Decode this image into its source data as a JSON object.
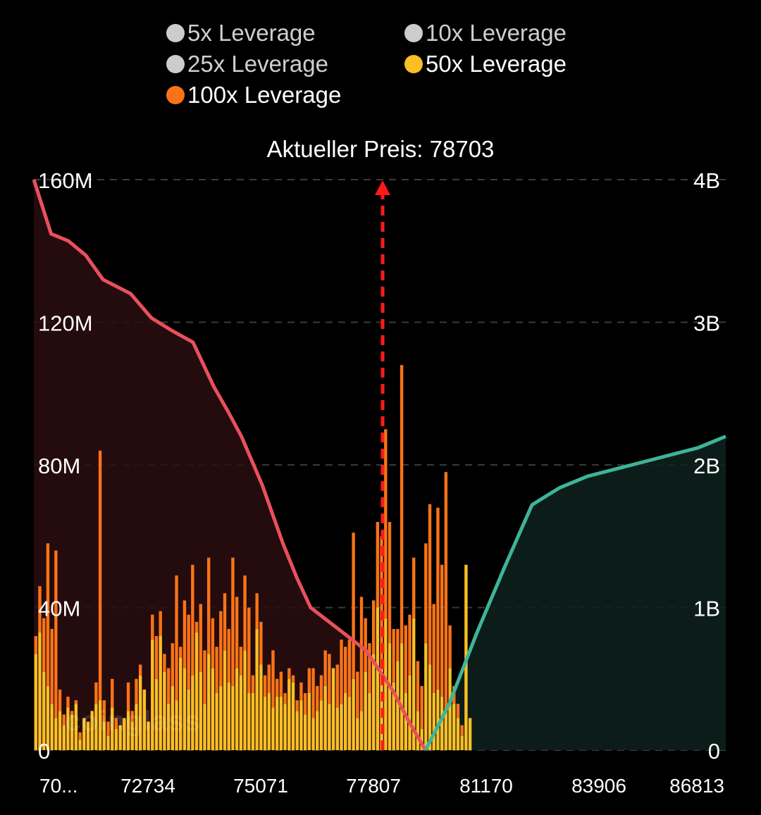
{
  "legend": [
    {
      "label": "5x Leverage",
      "color": "#cccccc",
      "active": false
    },
    {
      "label": "10x Leverage",
      "color": "#cccccc",
      "active": false
    },
    {
      "label": "25x Leverage",
      "color": "#cccccc",
      "active": false
    },
    {
      "label": "50x Leverage",
      "color": "#fbbf24",
      "active": true
    },
    {
      "label": "100x Leverage",
      "color": "#f97316",
      "active": true
    }
  ],
  "watermark": "coinglass",
  "chart_data": {
    "type": "bar",
    "title": "Aktueller Preis: 78703",
    "current_price": 78703,
    "x_tick_labels": [
      "70...",
      "72734",
      "75071",
      "77807",
      "81170",
      "83906",
      "86813"
    ],
    "left_axis": {
      "ticks": [
        "0",
        "40M",
        "80M",
        "120M",
        "160M"
      ],
      "range": [
        0,
        160000000
      ]
    },
    "right_axis": {
      "ticks": [
        "0",
        "1B",
        "2B",
        "3B",
        "4B"
      ],
      "range": [
        0,
        4000000000
      ]
    },
    "grid": true,
    "colors": {
      "50x": "#fbbf24",
      "100x": "#f97316",
      "long_cumulative": "#e8505b",
      "short_cumulative": "#3fb39a",
      "price_marker": "#ff1a1a"
    },
    "series": [
      {
        "name": "50x Leverage",
        "unit": "M",
        "values": [
          27,
          33,
          22,
          18,
          13,
          9,
          11,
          7,
          12,
          10,
          13,
          3,
          9,
          8,
          11,
          13,
          14,
          8,
          4,
          12,
          6,
          7,
          9,
          11,
          8,
          13,
          21,
          17,
          8,
          31,
          20,
          32,
          22,
          13,
          18,
          14,
          26,
          23,
          17,
          21,
          33,
          22,
          13,
          27,
          23,
          16,
          18,
          28,
          19,
          18,
          23,
          21,
          28,
          16,
          16,
          34,
          24,
          15,
          16,
          12,
          15,
          15,
          13,
          20,
          19,
          11,
          14,
          10,
          16,
          9,
          11,
          14,
          18,
          13,
          23,
          12,
          13,
          16,
          15,
          20,
          9,
          11,
          22,
          16,
          27,
          40,
          23,
          37,
          30,
          19,
          25,
          30,
          16,
          21,
          37,
          11,
          6,
          30,
          24,
          16,
          17,
          15,
          12,
          23,
          13,
          9,
          4,
          52,
          9
        ]
      },
      {
        "name": "100x Leverage",
        "unit": "M",
        "values": [
          5,
          13,
          15,
          40,
          21,
          47,
          6,
          3,
          3,
          1,
          1,
          2,
          0,
          0,
          0,
          6,
          70,
          6,
          4,
          8,
          3,
          0,
          0,
          8,
          3,
          7,
          3,
          0,
          0,
          7,
          12,
          7,
          5,
          10,
          12,
          35,
          3,
          19,
          21,
          31,
          3,
          19,
          15,
          27,
          14,
          13,
          21,
          16,
          15,
          36,
          20,
          8,
          21,
          24,
          5,
          10,
          12,
          6,
          8,
          16,
          5,
          7,
          3,
          3,
          2,
          3,
          5,
          6,
          7,
          14,
          7,
          7,
          10,
          14,
          0,
          12,
          18,
          13,
          16,
          41,
          13,
          32,
          15,
          14,
          15,
          24,
          37,
          53,
          34,
          15,
          9,
          78,
          19,
          17,
          17,
          14,
          12,
          28,
          45,
          25,
          51,
          37,
          66,
          12,
          5,
          4,
          3,
          0,
          0
        ]
      },
      {
        "name": "long_cumulative",
        "unit": "B",
        "points": [
          [
            0,
            4.0
          ],
          [
            0.025,
            3.62
          ],
          [
            0.05,
            3.57
          ],
          [
            0.075,
            3.47
          ],
          [
            0.1,
            3.3
          ],
          [
            0.14,
            3.2
          ],
          [
            0.17,
            3.03
          ],
          [
            0.2,
            2.94
          ],
          [
            0.23,
            2.86
          ],
          [
            0.26,
            2.55
          ],
          [
            0.28,
            2.38
          ],
          [
            0.3,
            2.2
          ],
          [
            0.33,
            1.86
          ],
          [
            0.36,
            1.45
          ],
          [
            0.38,
            1.21
          ],
          [
            0.4,
            1.0
          ],
          [
            0.44,
            0.85
          ],
          [
            0.48,
            0.7
          ],
          [
            0.52,
            0.41
          ],
          [
            0.54,
            0.22
          ],
          [
            0.566,
            0.0
          ]
        ]
      },
      {
        "name": "short_cumulative",
        "unit": "B",
        "points": [
          [
            0.566,
            0.0
          ],
          [
            0.6,
            0.32
          ],
          [
            0.64,
            0.82
          ],
          [
            0.68,
            1.28
          ],
          [
            0.7,
            1.5
          ],
          [
            0.72,
            1.72
          ],
          [
            0.76,
            1.84
          ],
          [
            0.8,
            1.92
          ],
          [
            0.84,
            1.97
          ],
          [
            0.88,
            2.02
          ],
          [
            0.92,
            2.07
          ],
          [
            0.96,
            2.12
          ],
          [
            1.0,
            2.2
          ]
        ]
      }
    ]
  }
}
